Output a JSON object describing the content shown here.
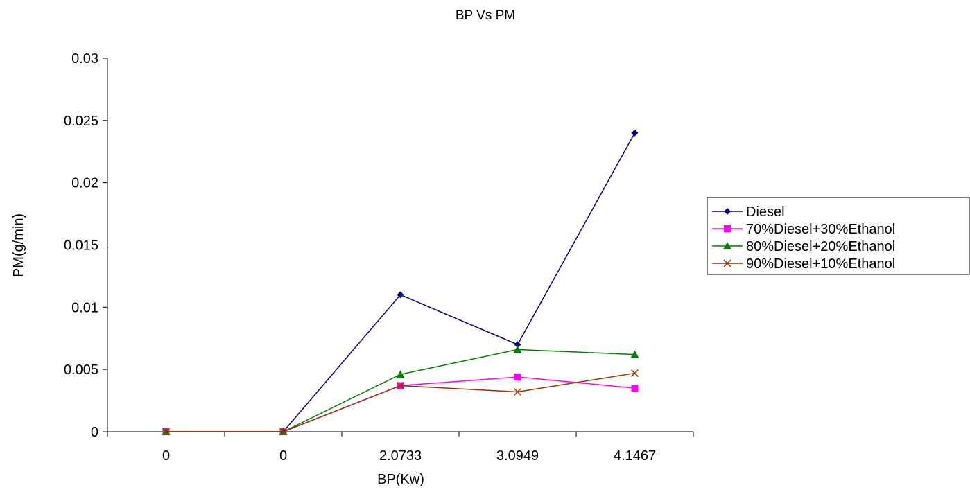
{
  "chart_data": {
    "type": "line",
    "title": "BP Vs PM",
    "xlabel": "BP(Kw)",
    "ylabel": "PM(g/min)",
    "categories": [
      "0",
      "0",
      "2.0733",
      "3.0949",
      "4.1467"
    ],
    "ylim": [
      0,
      0.03
    ],
    "yticks": [
      "0",
      "0.005",
      "0.01",
      "0.015",
      "0.02",
      "0.025",
      "0.03"
    ],
    "grid": false,
    "legend_position": "right",
    "series": [
      {
        "name": "Diesel",
        "color": "#000080",
        "marker": "diamond",
        "values": [
          0,
          0,
          0.011,
          0.007,
          0.024
        ]
      },
      {
        "name": "70%Diesel+30%Ethanol",
        "color": "#FF00FF",
        "marker": "square",
        "values": [
          0,
          0,
          0.0037,
          0.0044,
          0.0035
        ]
      },
      {
        "name": "80%Diesel+20%Ethanol",
        "color": "#008000",
        "marker": "triangle",
        "values": [
          0,
          0,
          0.0046,
          0.0066,
          0.0062
        ]
      },
      {
        "name": "90%Diesel+10%Ethanol",
        "color": "#993300",
        "marker": "x",
        "values": [
          0,
          0,
          0.0037,
          0.0032,
          0.0047
        ]
      }
    ]
  }
}
